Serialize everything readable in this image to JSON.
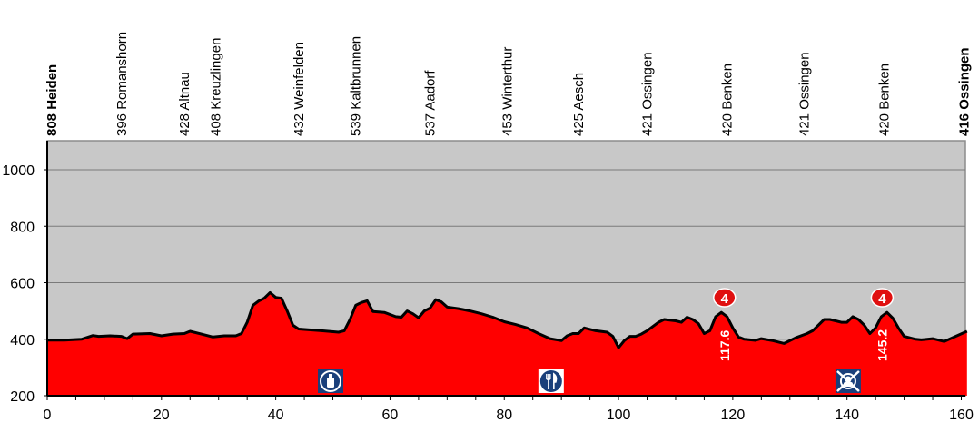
{
  "chart_data": {
    "type": "area",
    "title": "",
    "xlabel": "",
    "ylabel": "",
    "xlim": [
      0,
      161
    ],
    "ylim": [
      200,
      1100
    ],
    "x_ticks": [
      0,
      20,
      40,
      60,
      80,
      100,
      120,
      140,
      160
    ],
    "x_minor_step": 5,
    "y_ticks": [
      200,
      400,
      600,
      800,
      1000
    ],
    "grid": "horizontal",
    "colors": {
      "fill": "#ff0000",
      "plot_bg": "#c8c8c8",
      "line": "#000000",
      "icon_bg": "#1a3f7a"
    },
    "places": [
      {
        "km": 0.8,
        "label": "808 Heiden",
        "bold": true
      },
      {
        "km": 13,
        "label": "396 Romanshorn",
        "bold": false
      },
      {
        "km": 24,
        "label": "428 Altnau",
        "bold": false
      },
      {
        "km": 29.5,
        "label": "408 Kreuzlingen",
        "bold": false
      },
      {
        "km": 44,
        "label": "432 Weinfelden",
        "bold": false
      },
      {
        "km": 54,
        "label": "539 Kaltbrunnen",
        "bold": false
      },
      {
        "km": 67,
        "label": "537 Aadorf",
        "bold": false
      },
      {
        "km": 80.5,
        "label": "453 Winterthur",
        "bold": false
      },
      {
        "km": 93,
        "label": "425 Aesch",
        "bold": false
      },
      {
        "km": 105,
        "label": "421 Ossingen",
        "bold": false
      },
      {
        "km": 119,
        "label": "420 Benken",
        "bold": false
      },
      {
        "km": 132.5,
        "label": "421 Ossingen",
        "bold": false
      },
      {
        "km": 146.5,
        "label": "420 Benken",
        "bold": false
      },
      {
        "km": 160.5,
        "label": "416 Ossingen",
        "bold": true
      }
    ],
    "profile": {
      "x": [
        0,
        3,
        6,
        8,
        9,
        11,
        13,
        14,
        15,
        18,
        20,
        22,
        24,
        25,
        27,
        29,
        31,
        33,
        34,
        35,
        36,
        37,
        38,
        39,
        40,
        41,
        42,
        43,
        44,
        48,
        51,
        52,
        53,
        54,
        55,
        56,
        57,
        59,
        61,
        62,
        63,
        64,
        65,
        66,
        67,
        68,
        69,
        70,
        72,
        74,
        76,
        78,
        80,
        82,
        84,
        86,
        88,
        90,
        91,
        92,
        93,
        94,
        96,
        98,
        99,
        100,
        101,
        102,
        103,
        104,
        105,
        107,
        108,
        110,
        111,
        112,
        113,
        114,
        115,
        116,
        117,
        118,
        119,
        120,
        121,
        122,
        124,
        125,
        127,
        129,
        131,
        133,
        134,
        136,
        137,
        139,
        140,
        141,
        142,
        143,
        144,
        145,
        146,
        147,
        148,
        149,
        150,
        152,
        153,
        155,
        157,
        159,
        161
      ],
      "y": [
        397,
        397,
        400,
        413,
        410,
        412,
        410,
        402,
        418,
        420,
        412,
        418,
        420,
        428,
        418,
        408,
        412,
        412,
        420,
        460,
        520,
        535,
        545,
        565,
        548,
        545,
        500,
        450,
        436,
        430,
        425,
        430,
        470,
        520,
        530,
        536,
        498,
        495,
        480,
        478,
        500,
        490,
        476,
        500,
        510,
        540,
        532,
        514,
        508,
        500,
        490,
        478,
        462,
        452,
        440,
        420,
        402,
        395,
        412,
        420,
        420,
        440,
        430,
        425,
        410,
        370,
        395,
        410,
        410,
        418,
        430,
        460,
        470,
        465,
        460,
        478,
        470,
        455,
        420,
        430,
        480,
        495,
        480,
        440,
        408,
        400,
        396,
        402,
        395,
        385,
        405,
        420,
        430,
        470,
        470,
        460,
        460,
        480,
        470,
        450,
        420,
        440,
        480,
        495,
        475,
        440,
        410,
        400,
        398,
        402,
        392,
        410,
        428
      ]
    },
    "climbs": [
      {
        "km": 117.6,
        "label": "117.6",
        "category": "4"
      },
      {
        "km": 145.2,
        "label": "145.2",
        "category": "4"
      }
    ],
    "services": [
      {
        "km": 49.6,
        "icon": "water-bottle-icon"
      },
      {
        "km": 88.2,
        "icon": "feeding-zone-icon"
      },
      {
        "km": 140.2,
        "icon": "no-feeding-icon"
      }
    ]
  }
}
